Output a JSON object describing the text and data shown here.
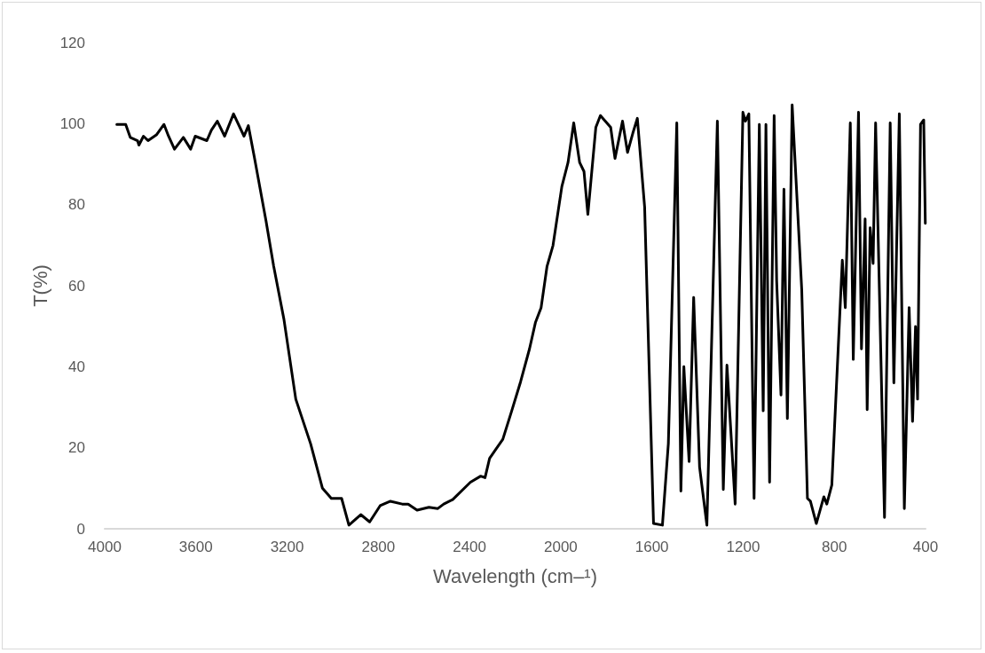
{
  "chart_data": {
    "type": "line",
    "xlabel": "Wavelength (cm–¹)",
    "ylabel": "T(%)",
    "xlim": [
      4000,
      400
    ],
    "xticks": [
      4000,
      3600,
      3200,
      2800,
      2400,
      2000,
      1600,
      1200,
      800,
      400
    ],
    "ylim": [
      0,
      120
    ],
    "yticks": [
      0,
      20,
      40,
      60,
      80,
      100,
      120
    ],
    "grid": false,
    "marker": "none",
    "line_style": "solid",
    "series": [
      {
        "color": "#000000",
        "x": [
          3947,
          3908,
          3888,
          3856,
          3850,
          3830,
          3810,
          3772,
          3740,
          3720,
          3694,
          3655,
          3623,
          3603,
          3552,
          3532,
          3506,
          3474,
          3435,
          3389,
          3370,
          3344,
          3292,
          3259,
          3214,
          3162,
          3097,
          3045,
          3006,
          2961,
          2929,
          2877,
          2838,
          2792,
          2747,
          2695,
          2669,
          2630,
          2578,
          2539,
          2513,
          2474,
          2396,
          2351,
          2332,
          2312,
          2254,
          2215,
          2176,
          2137,
          2111,
          2086,
          2060,
          2034,
          1995,
          1968,
          1943,
          1917,
          1898,
          1881,
          1846,
          1826,
          1781,
          1762,
          1729,
          1707,
          1684,
          1664,
          1632,
          1593,
          1554,
          1528,
          1491,
          1473,
          1460,
          1437,
          1417,
          1391,
          1359,
          1313,
          1287,
          1271,
          1235,
          1201,
          1190,
          1175,
          1152,
          1129,
          1112,
          1100,
          1084,
          1064,
          1053,
          1034,
          1021,
          1006,
          985,
          943,
          918,
          905,
          879,
          846,
          833,
          811,
          765,
          752,
          730,
          717,
          694,
          681,
          665,
          656,
          643,
          630,
          619,
          580,
          555,
          539,
          515,
          493,
          472,
          457,
          444,
          435,
          422,
          408,
          401
        ],
        "values": [
          99.8,
          99.8,
          96.6,
          95.8,
          94.7,
          96.9,
          95.8,
          97.3,
          99.8,
          96.9,
          93.7,
          96.6,
          93.7,
          96.9,
          95.8,
          98.4,
          100.6,
          96.9,
          102.4,
          96.9,
          99.5,
          91.8,
          75.8,
          64.8,
          51.7,
          32,
          21,
          10,
          7.5,
          7.5,
          0.9,
          3.5,
          1.7,
          5.7,
          6.8,
          6.1,
          6.1,
          4.6,
          5.3,
          5,
          6.1,
          7.2,
          11.5,
          13,
          12.6,
          17.4,
          22.1,
          29.1,
          36.3,
          44.4,
          50.9,
          54.6,
          64.8,
          69.9,
          84.5,
          90.4,
          100.2,
          90.4,
          88.2,
          77.6,
          99.1,
          102,
          99.1,
          91.4,
          100.6,
          92.9,
          97.6,
          101.3,
          79.4,
          1.3,
          0.9,
          21,
          100.2,
          9.3,
          40,
          16.6,
          57.1,
          15.2,
          0.9,
          100.6,
          9.7,
          40.4,
          6.1,
          102.8,
          100.6,
          102.4,
          7.5,
          99.8,
          29.1,
          99.8,
          11.5,
          102,
          61.2,
          33,
          83.8,
          27.2,
          104.6,
          59,
          7.5,
          6.8,
          1.3,
          7.9,
          6.1,
          10.8,
          66.3,
          54.6,
          100.2,
          41.8,
          102.8,
          44.4,
          76.5,
          29.4,
          74.3,
          65.5,
          100.2,
          2.8,
          100.2,
          36,
          102.4,
          5,
          54.6,
          26.5,
          49.9,
          32,
          99.8,
          100.9,
          75.4
        ]
      }
    ]
  }
}
